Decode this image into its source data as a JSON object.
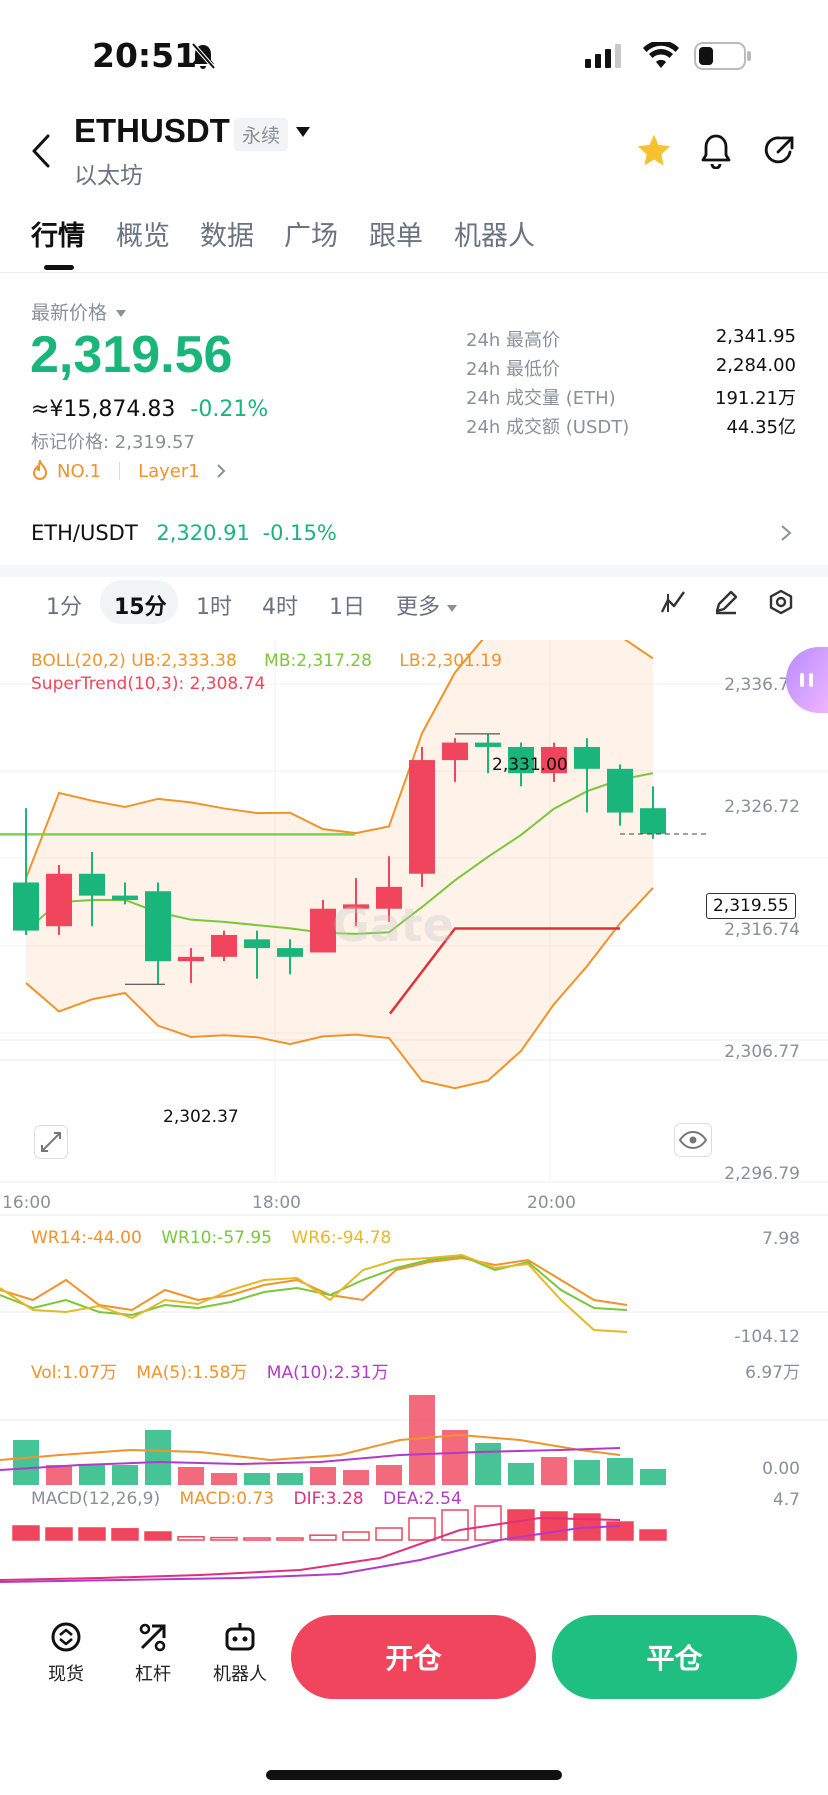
{
  "status_bar": {
    "time": "20:51"
  },
  "header": {
    "title": "ETHUSDT",
    "badge": "永续",
    "subtitle": "以太坊"
  },
  "tabs": [
    {
      "label": "行情"
    },
    {
      "label": "概览"
    },
    {
      "label": "数据"
    },
    {
      "label": "广场"
    },
    {
      "label": "跟单"
    },
    {
      "label": "机器人"
    }
  ],
  "price": {
    "latest_label": "最新价格",
    "last": "2,319.56",
    "cny": "≈¥15,874.83",
    "change": "-0.21%",
    "mark_price": "标记价格: 2,319.57",
    "rank": "NO.1",
    "sector": "Layer1"
  },
  "stats": [
    {
      "label": "24h 最高价",
      "value": "2,341.95"
    },
    {
      "label": "24h 最低价",
      "value": "2,284.00"
    },
    {
      "label": "24h 成交量 (ETH)",
      "value": "191.21万"
    },
    {
      "label": "24h 成交额 (USDT)",
      "value": "44.35亿"
    }
  ],
  "spot": {
    "pair": "ETH/USDT",
    "price": "2,320.91",
    "change": "-0.15%"
  },
  "intervals": [
    {
      "label": "1分"
    },
    {
      "label": "15分"
    },
    {
      "label": "1时"
    },
    {
      "label": "4时"
    },
    {
      "label": "1日"
    },
    {
      "label": "更多"
    }
  ],
  "indicators": {
    "boll": "BOLL(20,2)",
    "ub": "UB:2,333.38",
    "mb": "MB:2,317.28",
    "lb": "LB:2,301.19",
    "supertrend": "SuperTrend(10,3): 2,308.74",
    "wr14": "WR14:-44.00",
    "wr10": "WR10:-57.95",
    "wr6": "WR6:-94.78",
    "vol": "Vol:1.07万",
    "ma5": "MA(5):1.58万",
    "ma10": "MA(10):2.31万",
    "macd_params": "MACD(12,26,9)",
    "macd": "MACD:0.73",
    "dif": "DIF:3.28",
    "dea": "DEA:2.54"
  },
  "axes": {
    "price_ticks": [
      "2,336.70",
      "2,326.72",
      "2,316.74",
      "2,306.77",
      "2,296.79"
    ],
    "time_ticks": [
      "16:00",
      "18:00",
      "20:00"
    ],
    "wr_ticks": [
      "7.98",
      "-104.12"
    ],
    "vol_ticks": [
      "6.97万",
      "0.00"
    ],
    "macd_ticks": [
      "4.7"
    ],
    "current_price_tag": "2,319.55",
    "high_marker": "2,331.00",
    "low_marker": "2,302.37",
    "watermark": "Gate"
  },
  "chart_data": {
    "type": "candlestick",
    "candles": [
      {
        "o": 2314.0,
        "h": 2322.5,
        "l": 2308.0,
        "c": 2308.5
      },
      {
        "o": 2309.0,
        "h": 2316.0,
        "l": 2308.0,
        "c": 2315.0
      },
      {
        "o": 2315.0,
        "h": 2317.5,
        "l": 2309.0,
        "c": 2312.5
      },
      {
        "o": 2312.5,
        "h": 2314.0,
        "l": 2311.5,
        "c": 2312.0
      },
      {
        "o": 2313.0,
        "h": 2314.0,
        "l": 2302.37,
        "c": 2305.0
      },
      {
        "o": 2305.0,
        "h": 2306.5,
        "l": 2302.5,
        "c": 2305.5
      },
      {
        "o": 2305.5,
        "h": 2308.5,
        "l": 2305.0,
        "c": 2308.0
      },
      {
        "o": 2307.5,
        "h": 2308.5,
        "l": 2303.0,
        "c": 2306.5
      },
      {
        "o": 2306.5,
        "h": 2307.5,
        "l": 2303.5,
        "c": 2305.5
      },
      {
        "o": 2306.0,
        "h": 2312.0,
        "l": 2306.0,
        "c": 2311.0
      },
      {
        "o": 2311.0,
        "h": 2314.5,
        "l": 2309.0,
        "c": 2311.5
      },
      {
        "o": 2311.0,
        "h": 2317.0,
        "l": 2309.5,
        "c": 2313.5
      },
      {
        "o": 2315.0,
        "h": 2329.5,
        "l": 2313.5,
        "c": 2328.0
      },
      {
        "o": 2328.0,
        "h": 2330.5,
        "l": 2325.5,
        "c": 2330.0
      },
      {
        "o": 2330.0,
        "h": 2331.0,
        "l": 2326.5,
        "c": 2329.5
      },
      {
        "o": 2329.5,
        "h": 2330.0,
        "l": 2325.0,
        "c": 2326.5
      },
      {
        "o": 2326.5,
        "h": 2330.0,
        "l": 2325.5,
        "c": 2329.5
      },
      {
        "o": 2329.5,
        "h": 2330.5,
        "l": 2322.0,
        "c": 2327.0
      },
      {
        "o": 2327.0,
        "h": 2327.5,
        "l": 2320.5,
        "c": 2322.0
      },
      {
        "o": 2322.5,
        "h": 2325.0,
        "l": 2319.0,
        "c": 2319.56
      }
    ],
    "volume_colors_note": "red up / green down",
    "colors": {
      "up": "#f0455c",
      "down": "#19b57a",
      "boll_ub": "#f0932b",
      "boll_mb": "#7cc63a",
      "supertrend": "#e0303b"
    }
  }
}
